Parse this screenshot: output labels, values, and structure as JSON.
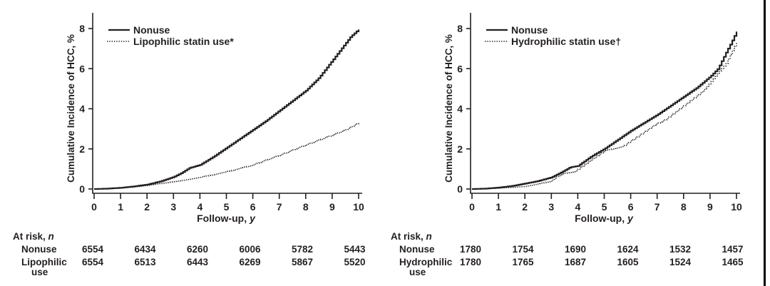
{
  "page": {
    "background": "#ffffff",
    "ink": "#231f20",
    "divider_color": "#000000"
  },
  "chart_data": [
    {
      "type": "line",
      "panel": "left",
      "title": "",
      "ylabel": "Cumulative Incidence of HCC, %",
      "xlabel_main": "Follow-up,",
      "xlabel_italic": "y",
      "xlim": [
        0,
        10
      ],
      "ylim": [
        0,
        8
      ],
      "xticks": [
        0,
        1,
        2,
        3,
        4,
        5,
        6,
        7,
        8,
        9,
        10
      ],
      "yticks": [
        0,
        2,
        4,
        6,
        8
      ],
      "grid": false,
      "legend_position": "top-left",
      "series": [
        {
          "name": "Nonuse",
          "style": "solid",
          "x": [
            0,
            0.5,
            1,
            1.5,
            2,
            2.5,
            3,
            3.3,
            3.6,
            4,
            4.5,
            5,
            5.5,
            6,
            6.5,
            7,
            7.5,
            8,
            8.5,
            9,
            9.35,
            9.7,
            10
          ],
          "y": [
            0,
            0.02,
            0.06,
            0.13,
            0.22,
            0.38,
            0.6,
            0.8,
            1.05,
            1.2,
            1.6,
            2.05,
            2.5,
            2.95,
            3.4,
            3.9,
            4.4,
            4.9,
            5.55,
            6.4,
            7.0,
            7.6,
            7.95
          ]
        },
        {
          "name": "Lipophilic statin use*",
          "style": "dotted",
          "x": [
            0,
            0.5,
            1,
            1.5,
            2,
            2.5,
            3,
            3.5,
            4,
            4.5,
            5,
            5.5,
            6,
            6.5,
            7,
            7.5,
            8,
            8.5,
            9,
            9.5,
            10
          ],
          "y": [
            0,
            0.02,
            0.05,
            0.1,
            0.17,
            0.27,
            0.37,
            0.47,
            0.58,
            0.72,
            0.86,
            1.03,
            1.2,
            1.45,
            1.68,
            1.95,
            2.2,
            2.45,
            2.69,
            2.95,
            3.3
          ]
        }
      ],
      "at_risk": {
        "header_main": "At risk,",
        "header_italic": "n",
        "times": [
          0,
          2,
          4,
          6,
          8,
          10
        ],
        "rows": [
          {
            "label": "Nonuse",
            "label2": "",
            "counts": [
              "6554",
              "6434",
              "6260",
              "6006",
              "5782",
              "5443"
            ]
          },
          {
            "label": "Lipophilic",
            "label2": "use",
            "counts": [
              "6554",
              "6513",
              "6443",
              "6269",
              "5867",
              "5520"
            ]
          }
        ]
      }
    },
    {
      "type": "line",
      "panel": "right",
      "title": "",
      "ylabel": "Cumulative Incidence of HCC, %",
      "xlabel_main": "Follow-up,",
      "xlabel_italic": "y",
      "xlim": [
        0,
        10
      ],
      "ylim": [
        0,
        8
      ],
      "xticks": [
        0,
        1,
        2,
        3,
        4,
        5,
        6,
        7,
        8,
        9,
        10
      ],
      "yticks": [
        0,
        2,
        4,
        6,
        8
      ],
      "grid": false,
      "legend_position": "top-left",
      "series": [
        {
          "name": "Nonuse",
          "style": "solid",
          "x": [
            0,
            0.5,
            1,
            1.5,
            2,
            2.5,
            3,
            3.4,
            3.7,
            4,
            4.5,
            5,
            5.5,
            6,
            6.5,
            7,
            7.5,
            8,
            8.5,
            9,
            9.3,
            9.6,
            9.8,
            10
          ],
          "y": [
            0,
            0.02,
            0.07,
            0.15,
            0.27,
            0.4,
            0.58,
            0.85,
            1.08,
            1.15,
            1.62,
            2.0,
            2.45,
            2.9,
            3.3,
            3.7,
            4.15,
            4.6,
            5.05,
            5.6,
            6.0,
            6.8,
            7.3,
            7.85
          ]
        },
        {
          "name": "Hydrophilic statin use†",
          "style": "dotted",
          "x": [
            0,
            0.5,
            1,
            1.5,
            2,
            2.5,
            3,
            3.2,
            3.5,
            3.9,
            4,
            4.5,
            5,
            5.3,
            5.7,
            6,
            6.3,
            6.9,
            7.3,
            7.8,
            8.3,
            8.7,
            9,
            9.3,
            9.6,
            9.8,
            10
          ],
          "y": [
            0,
            0.02,
            0.04,
            0.08,
            0.13,
            0.25,
            0.4,
            0.62,
            0.78,
            0.88,
            0.98,
            1.45,
            1.9,
            2.0,
            2.12,
            2.4,
            2.65,
            3.2,
            3.45,
            3.95,
            4.45,
            4.85,
            5.3,
            5.8,
            6.25,
            6.8,
            7.3
          ]
        }
      ],
      "at_risk": {
        "header_main": "At risk,",
        "header_italic": "n",
        "times": [
          0,
          2,
          4,
          6,
          8,
          10
        ],
        "rows": [
          {
            "label": "Nonuse",
            "label2": "",
            "counts": [
              "1780",
              "1754",
              "1690",
              "1624",
              "1532",
              "1457"
            ]
          },
          {
            "label": "Hydrophilic",
            "label2": "use",
            "counts": [
              "1780",
              "1765",
              "1687",
              "1605",
              "1524",
              "1465"
            ]
          }
        ]
      }
    }
  ]
}
